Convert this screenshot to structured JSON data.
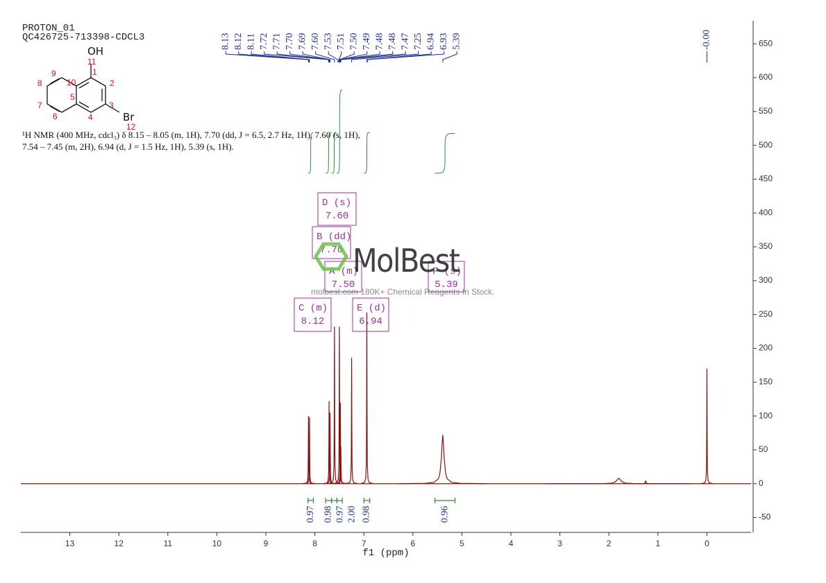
{
  "header": {
    "lines": [
      "PROTON_01",
      "QC426725-713398-CDCL3"
    ]
  },
  "molecule": {
    "groups": [
      "OH",
      "Br"
    ],
    "atoms": [
      "1",
      "2",
      "3",
      "4",
      "5",
      "6",
      "7",
      "8",
      "9",
      "10",
      "11",
      "12"
    ]
  },
  "description": [
    "¹H NMR (400 MHz, cdcl₃) δ 8.15 – 8.05 (m, 1H), 7.70 (dd, J = 6.5, 2.7 Hz, 1H), 7.60 (s, 1H),",
    "7.54 – 7.45 (m, 2H), 6.94 (d, J = 1.5 Hz, 1H), 5.39 (s, 1H)."
  ],
  "watermark": {
    "logo": "MolBest",
    "tagline": "molbest.com 180K+ Chemical Reagents In Stock."
  },
  "chart_data": {
    "type": "spectrum",
    "x_label": "f1 (ppm)",
    "xlim": [
      14.0,
      -0.9
    ],
    "xticks": [
      0,
      1,
      2,
      3,
      4,
      5,
      6,
      7,
      8,
      9,
      10,
      11,
      12,
      13
    ],
    "ylim": [
      -72,
      684
    ],
    "yticks": [
      -50,
      0,
      50,
      100,
      150,
      200,
      250,
      300,
      350,
      400,
      450,
      500,
      550,
      600,
      650
    ],
    "color": "#8b1010",
    "pick_color": "#1f2f8f",
    "integral_color": "#2e8b3a",
    "box_color": "#9b30a0",
    "peaks": {
      "ppm": [
        8.13,
        8.11,
        7.71,
        7.69,
        7.6,
        7.5,
        7.48,
        7.47,
        7.25,
        6.94,
        5.39,
        1.8,
        1.25,
        0
      ],
      "height": [
        100,
        98,
        122,
        105,
        232,
        232,
        120,
        55,
        186,
        253,
        72,
        8,
        4,
        170
      ],
      "widths": [
        0.004,
        0.004,
        0.004,
        0.004,
        0.004,
        0.004,
        0.004,
        0.004,
        0.004,
        0.004,
        0.03,
        0.05,
        0.01,
        0.004
      ]
    },
    "peak_picks": [
      8.13,
      8.12,
      8.11,
      7.72,
      7.71,
      {
        "value": 7.7,
        "label": "7.70"
      },
      7.69,
      {
        "value": 7.6,
        "label": "7.60"
      },
      7.53,
      7.51,
      {
        "value": 7.5,
        "label": "7.50"
      },
      7.49,
      7.48,
      7.48,
      7.47,
      7.25,
      6.94,
      6.93,
      5.39,
      {
        "value": 0,
        "label": "-0.00"
      }
    ],
    "integrals": {
      "ranges": [
        [
          8.14,
          8.03
        ],
        [
          7.78,
          7.66
        ],
        [
          7.66,
          7.55
        ],
        [
          7.55,
          7.44
        ],
        [
          7.0,
          6.88
        ],
        [
          5.55,
          5.14
        ]
      ],
      "values": [
        0.97,
        0.98,
        0.97,
        2,
        0.98,
        0.96
      ],
      "value_labels": [
        "0.97",
        "0.98",
        "0.97",
        "2.00",
        "0.98",
        "0.96"
      ]
    },
    "multiplets": [
      {
        "name": "D (s)",
        "shift": {
          "value": 7.6,
          "label": "7.60"
        }
      },
      {
        "name": "B (dd)",
        "shift": {
          "value": 7.7,
          "label": "7.70"
        }
      },
      {
        "name": "A (m)",
        "shift": {
          "value": 7.5,
          "label": "7.50"
        }
      },
      {
        "name": "F (s)",
        "shift": 5.39
      },
      {
        "name": "C (m)",
        "shift": 8.12
      },
      {
        "name": "E (d)",
        "shift": 6.94
      }
    ]
  }
}
